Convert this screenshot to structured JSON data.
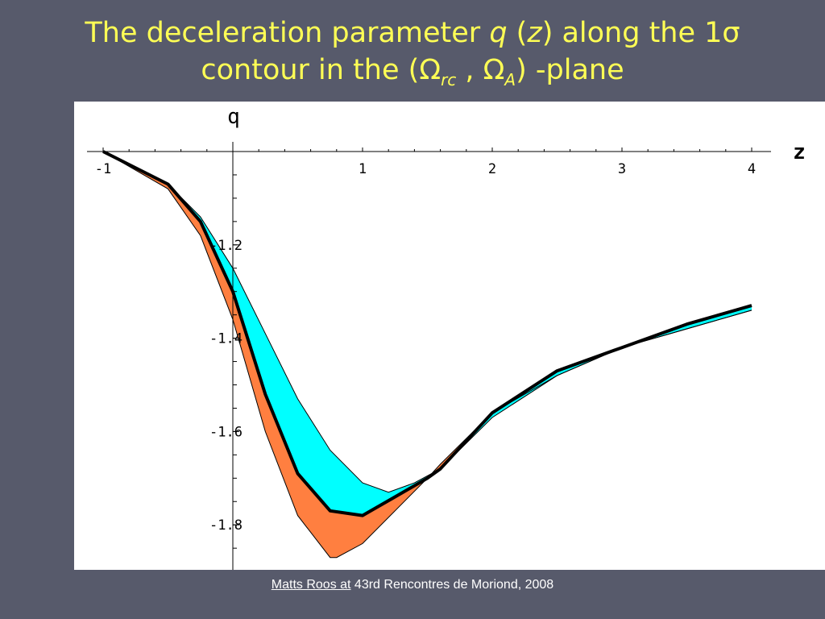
{
  "slide": {
    "title_line1_pre": "The deceleration parameter ",
    "title_q": "q",
    "title_paren_open": " (",
    "title_z": "z",
    "title_line1_post": ") along the 1",
    "title_sigma": "σ",
    "title_line2_pre": "contour in the (",
    "title_omega": "Ω",
    "title_sub_rc": "rc",
    "title_sep": " , ",
    "title_sub_a": "A",
    "title_line2_post": ") -plane",
    "footer_author": "Matts Roos at",
    "footer_rest": " 43rd Rencontres de Moriond, 2008"
  },
  "chart_data": {
    "type": "area",
    "xlabel": "z",
    "ylabel": "q",
    "xlim": [
      -1,
      4
    ],
    "ylim": [
      -1.89,
      -1.0
    ],
    "x_ticks": [
      "-1",
      "1",
      "2",
      "3",
      "4"
    ],
    "x_tick_values": [
      -1,
      1,
      2,
      3,
      4
    ],
    "y_ticks": [
      "-1.2",
      "-1.4",
      "-1.6",
      "-1.8"
    ],
    "y_tick_values": [
      -1.2,
      -1.4,
      -1.6,
      -1.8
    ],
    "grid": false,
    "colors": {
      "upper_band": "#00ffff",
      "lower_band": "#ff7f40",
      "curve": "#000000"
    },
    "series": [
      {
        "role": "lower_boundary",
        "x": [
          -1,
          -0.5,
          -0.25,
          0,
          0.25,
          0.5,
          0.75,
          0.8,
          1.0,
          1.25,
          1.5,
          1.6,
          2.0,
          2.5,
          3.0,
          3.5,
          4.0
        ],
        "y": [
          -1.0,
          -1.08,
          -1.18,
          -1.36,
          -1.6,
          -1.78,
          -1.87,
          -1.87,
          -1.84,
          -1.77,
          -1.7,
          -1.67,
          -1.56,
          -1.48,
          -1.42,
          -1.38,
          -1.34
        ]
      },
      {
        "role": "central",
        "x": [
          -1,
          -0.5,
          -0.25,
          0,
          0.25,
          0.5,
          0.75,
          1.0,
          1.25,
          1.5,
          1.6,
          2.0,
          2.5,
          3.0,
          3.5,
          4.0
        ],
        "y": [
          -1.0,
          -1.07,
          -1.15,
          -1.3,
          -1.52,
          -1.69,
          -1.77,
          -1.78,
          -1.74,
          -1.7,
          -1.68,
          -1.56,
          -1.47,
          -1.42,
          -1.37,
          -1.33
        ]
      },
      {
        "role": "upper_boundary",
        "x": [
          -1,
          -0.5,
          -0.25,
          0,
          0.25,
          0.5,
          0.75,
          1.0,
          1.2,
          1.4,
          1.6,
          2.0,
          2.5,
          3.0,
          3.5,
          4.0
        ],
        "y": [
          -1.0,
          -1.07,
          -1.14,
          -1.25,
          -1.39,
          -1.53,
          -1.64,
          -1.71,
          -1.73,
          -1.71,
          -1.68,
          -1.57,
          -1.48,
          -1.42,
          -1.38,
          -1.34
        ]
      }
    ]
  }
}
